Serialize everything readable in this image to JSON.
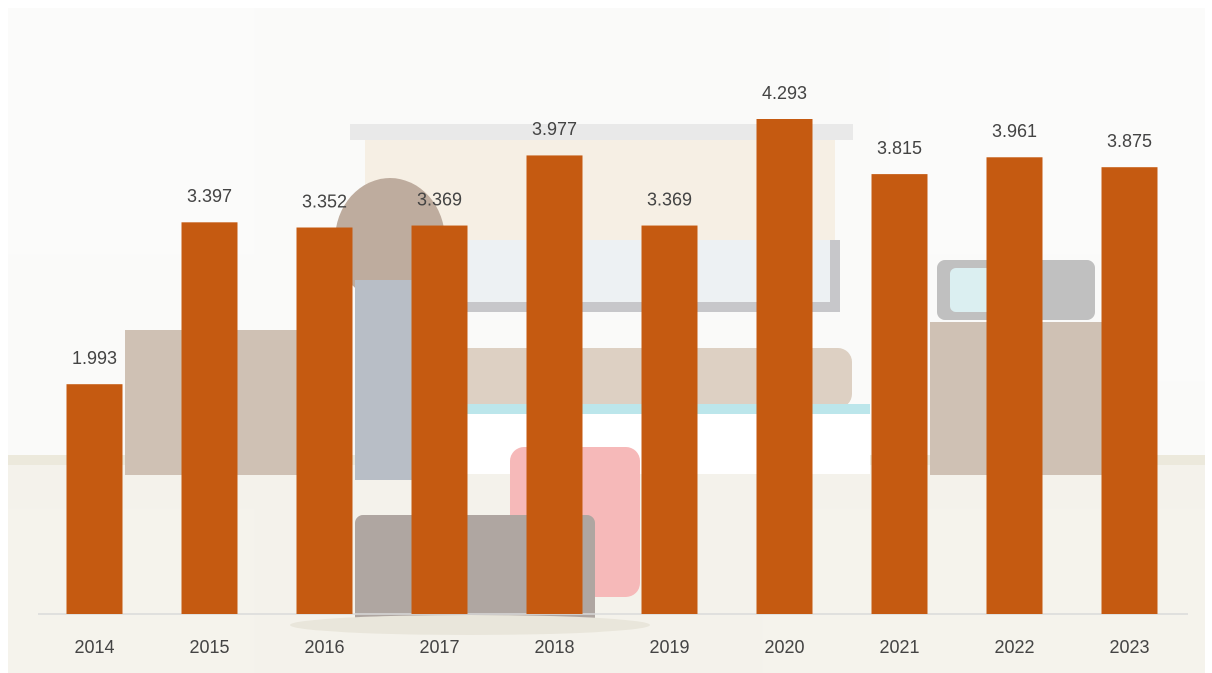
{
  "chart_data": {
    "type": "bar",
    "categories": [
      "2014",
      "2015",
      "2016",
      "2017",
      "2018",
      "2019",
      "2020",
      "2021",
      "2022",
      "2023"
    ],
    "values": [
      1.993,
      3.397,
      3.352,
      3.369,
      3.977,
      3.369,
      4.293,
      3.815,
      3.961,
      3.875
    ],
    "color": "#c55a11"
  }
}
